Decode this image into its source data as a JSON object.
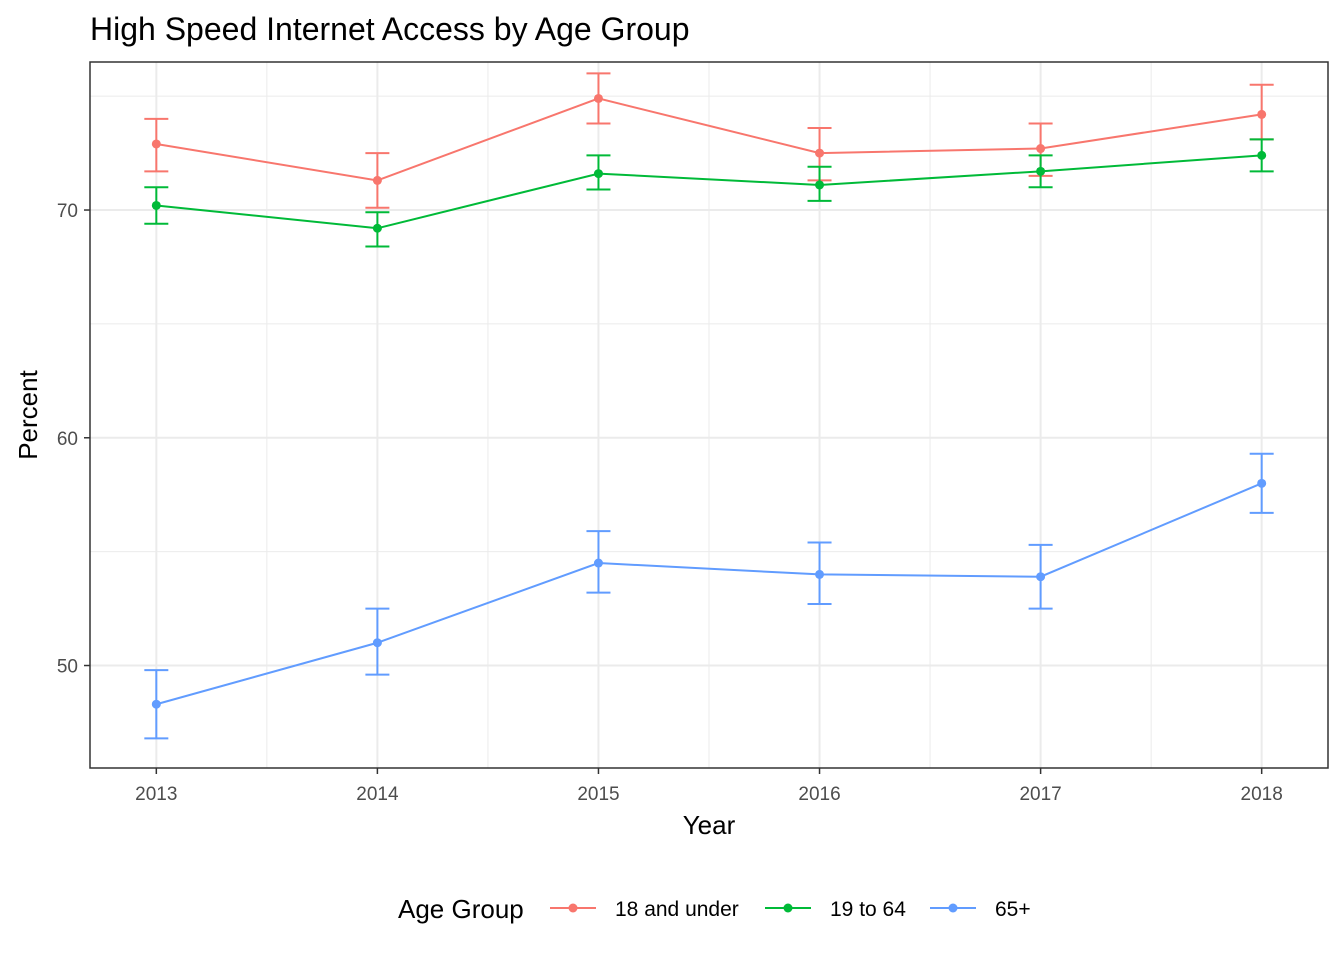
{
  "chart_data": {
    "type": "line",
    "title": "High Speed Internet Access by Age Group",
    "xlabel": "Year",
    "ylabel": "Percent",
    "x": [
      2013,
      2014,
      2015,
      2016,
      2017,
      2018
    ],
    "xlim": [
      2012.7,
      2018.3
    ],
    "ylim": [
      45.5,
      76.5
    ],
    "y_ticks": [
      50,
      60,
      70
    ],
    "y_minor_ticks": [
      55,
      65,
      75
    ],
    "grid": true,
    "legend": {
      "title": "Age Group",
      "position": "bottom"
    },
    "series": [
      {
        "name": "18 and under",
        "color": "#F8766D",
        "values": [
          72.9,
          71.3,
          74.9,
          72.5,
          72.7,
          74.2
        ],
        "lower": [
          71.7,
          70.1,
          73.8,
          71.3,
          71.5,
          73.1
        ],
        "upper": [
          74.0,
          72.5,
          76.0,
          73.6,
          73.8,
          75.5
        ]
      },
      {
        "name": "19 to 64",
        "color": "#00BA38",
        "values": [
          70.2,
          69.2,
          71.6,
          71.1,
          71.7,
          72.4
        ],
        "lower": [
          69.4,
          68.4,
          70.9,
          70.4,
          71.0,
          71.7
        ],
        "upper": [
          71.0,
          69.9,
          72.4,
          71.9,
          72.4,
          73.1
        ]
      },
      {
        "name": "65+",
        "color": "#619CFF",
        "values": [
          48.3,
          51.0,
          54.5,
          54.0,
          53.9,
          58.0
        ],
        "lower": [
          46.8,
          49.6,
          53.2,
          52.7,
          52.5,
          56.7
        ],
        "upper": [
          49.8,
          52.5,
          55.9,
          55.4,
          55.3,
          59.3
        ]
      }
    ]
  }
}
